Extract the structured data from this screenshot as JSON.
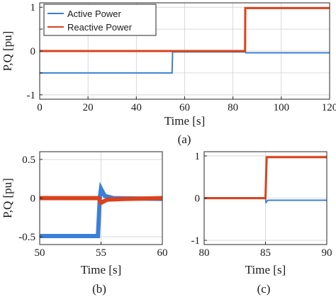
{
  "colors": {
    "active": "#3c7fd6",
    "reactive": "#d9431e",
    "grid": "#d0d0d0",
    "axis": "#262626"
  },
  "chart_data": [
    {
      "id": "a",
      "type": "line",
      "caption": "(a)",
      "xlabel": "Time [s]",
      "ylabel": "P,Q [pu]",
      "xlim": [
        0,
        120
      ],
      "ylim": [
        -1.1,
        1.1
      ],
      "xticks": [
        0,
        20,
        40,
        60,
        80,
        100,
        120
      ],
      "yticks": [
        -1,
        -0.5,
        0,
        0.5,
        1
      ],
      "ytick_labels": [
        "-1",
        "",
        "0",
        "",
        "1"
      ],
      "grid": true,
      "legend": {
        "placement": "top-left",
        "entries": [
          "Active Power",
          "Reactive Power"
        ]
      },
      "series": [
        {
          "name": "Active Power",
          "color_key": "active",
          "width": 2,
          "points": [
            [
              0,
              -0.5
            ],
            [
              54.8,
              -0.5
            ],
            [
              55,
              -0.02
            ],
            [
              85,
              -0.02
            ],
            [
              85.3,
              -0.04
            ],
            [
              120,
              -0.04
            ]
          ]
        },
        {
          "name": "Reactive Power",
          "color_key": "reactive",
          "width": 3,
          "points": [
            [
              0,
              0
            ],
            [
              85,
              0
            ],
            [
              85.1,
              0.98
            ],
            [
              120,
              0.98
            ]
          ]
        }
      ]
    },
    {
      "id": "b",
      "type": "line",
      "caption": "(b)",
      "xlabel": "Time [s]",
      "ylabel": "P,Q [pu]",
      "xlim": [
        50,
        60
      ],
      "ylim": [
        -0.6,
        0.6
      ],
      "xticks": [
        50,
        55,
        60
      ],
      "yticks": [
        -0.5,
        0,
        0.5
      ],
      "ytick_labels": [
        "-0.5",
        "0",
        "0.5"
      ],
      "grid": true,
      "series": [
        {
          "name": "Active Power",
          "color_key": "active",
          "width": 6,
          "points": [
            [
              50,
              -0.49
            ],
            [
              54.75,
              -0.49
            ],
            [
              54.9,
              0.0
            ],
            [
              55,
              0.12
            ],
            [
              55.3,
              0.03
            ],
            [
              56,
              0.0
            ],
            [
              60,
              -0.01
            ]
          ]
        },
        {
          "name": "Reactive Power",
          "color_key": "reactive",
          "width": 6,
          "points": [
            [
              50,
              0.0
            ],
            [
              54.8,
              0.0
            ],
            [
              55,
              -0.06
            ],
            [
              55.5,
              -0.02
            ],
            [
              57,
              -0.01
            ],
            [
              60,
              0.0
            ]
          ]
        }
      ]
    },
    {
      "id": "c",
      "type": "line",
      "caption": "(c)",
      "xlabel": "Time [s]",
      "ylabel": "",
      "xlim": [
        80,
        90
      ],
      "ylim": [
        -1.1,
        1.1
      ],
      "xticks": [
        80,
        85,
        90
      ],
      "yticks": [
        -1,
        0,
        1
      ],
      "ytick_labels": [
        "-1",
        "0",
        "1"
      ],
      "grid": true,
      "series": [
        {
          "name": "Active Power",
          "color_key": "active",
          "width": 2,
          "points": [
            [
              80,
              -0.01
            ],
            [
              85,
              -0.01
            ],
            [
              85.05,
              -0.1
            ],
            [
              85.2,
              -0.05
            ],
            [
              90,
              -0.05
            ]
          ]
        },
        {
          "name": "Reactive Power",
          "color_key": "reactive",
          "width": 3,
          "points": [
            [
              80,
              0.0
            ],
            [
              85,
              0.0
            ],
            [
              85.1,
              0.97
            ],
            [
              90,
              0.97
            ]
          ]
        }
      ]
    }
  ]
}
